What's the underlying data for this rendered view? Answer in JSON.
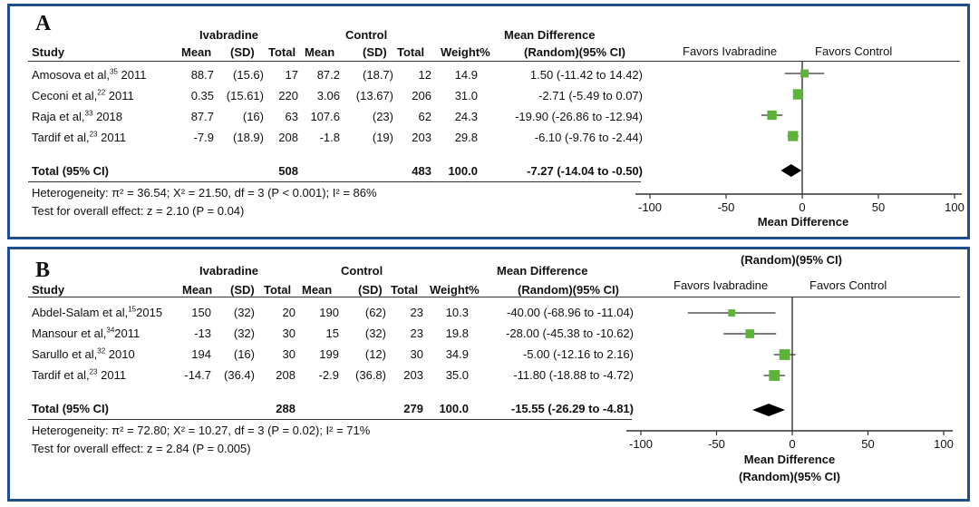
{
  "colors": {
    "frame": "#1f4e8c",
    "square": "#5cb33a",
    "diamond": "#000000",
    "line": "#333333"
  },
  "columns": {
    "study": "Study",
    "mean": "Mean",
    "sd": "(SD)",
    "total": "Total",
    "weight": "Weight%",
    "md_ci": "(Random)(95% CI)",
    "group1": "Ivabradine",
    "group2": "Control",
    "effect": "Mean Difference"
  },
  "panels": [
    {
      "letter": "A",
      "favors_left": "Favors  Ivabradine",
      "favors_right": "Favors Control",
      "axis_title": "Mean Difference",
      "axis_subtitle": "",
      "plot_top_label": "",
      "rows": [
        {
          "study": "Amosova et al,",
          "ref": "35",
          "year": "2011",
          "iv_mean": "88.7",
          "iv_sd": "(15.6)",
          "iv_total": "17",
          "c_mean": "87.2",
          "c_sd": "(18.7)",
          "c_total": "12",
          "weight": "14.9",
          "md_text": "1.50 (-11.42 to 14.42)"
        },
        {
          "study": "Ceconi et al,",
          "ref": "22",
          "year": "2011",
          "iv_mean": "0.35",
          "iv_sd": "(15.61)",
          "iv_total": "220",
          "c_mean": "3.06",
          "c_sd": "(13.67)",
          "c_total": "206",
          "weight": "31.0",
          "md_text": "-2.71 (-5.49 to 0.07)"
        },
        {
          "study": "Raja et al,",
          "ref": "33",
          "year": "2018",
          "iv_mean": "87.7",
          "iv_sd": "(16)",
          "iv_total": "63",
          "c_mean": "107.6",
          "c_sd": "(23)",
          "c_total": "62",
          "weight": "24.3",
          "md_text": "-19.90 (-26.86 to -12.94)"
        },
        {
          "study": "Tardif et al,",
          "ref": "23",
          "year": "2011",
          "iv_mean": "-7.9",
          "iv_sd": "(18.9)",
          "iv_total": "208",
          "c_mean": "-1.8",
          "c_sd": "(19)",
          "c_total": "203",
          "weight": "29.8",
          "md_text": "-6.10 (-9.76 to -2.44)"
        }
      ],
      "total": {
        "label": "Total (95% CI)",
        "iv_total": "508",
        "c_total": "483",
        "weight": "100.0",
        "md_text": "-7.27 (-14.04 to -0.50)"
      },
      "heterogeneity": "Heterogeneity:   π² = 36.54; X² = 21.50, df = 3 (P < 0.001); I² = 86%",
      "overall_effect": "Test for overall effect: z = 2.10 (P = 0.04)"
    },
    {
      "letter": "B",
      "favors_left": "Favors  Ivabradine",
      "favors_right": "Favors Control",
      "axis_title": "Mean Difference",
      "axis_subtitle": "(Random)(95% CI)",
      "plot_top_label": "(Random)(95% CI)",
      "rows": [
        {
          "study": "Abdel-Salam et al,",
          "ref": "15",
          "year": "2015",
          "iv_mean": "150",
          "iv_sd": "(32)",
          "iv_total": "20",
          "c_mean": "190",
          "c_sd": "(62)",
          "c_total": "23",
          "weight": "10.3",
          "md_text": "-40.00 (-68.96 to -11.04)"
        },
        {
          "study": "Mansour et al,",
          "ref": "34",
          "year": "2011",
          "iv_mean": "-13",
          "iv_sd": "(32)",
          "iv_total": "30",
          "c_mean": "15",
          "c_sd": "(32)",
          "c_total": "23",
          "weight": "19.8",
          "md_text": "-28.00 (-45.38 to -10.62)"
        },
        {
          "study": "Sarullo et al,",
          "ref": "32",
          "year": "2010",
          "iv_mean": "194",
          "iv_sd": "(16)",
          "iv_total": "30",
          "c_mean": "199",
          "c_sd": "(12)",
          "c_total": "30",
          "weight": "34.9",
          "md_text": "-5.00 (-12.16 to 2.16)"
        },
        {
          "study": "Tardif et al,",
          "ref": "23",
          "year": "2011",
          "iv_mean": "-14.7",
          "iv_sd": "(36.4)",
          "iv_total": "208",
          "c_mean": "-2.9",
          "c_sd": "(36.8)",
          "c_total": "203",
          "weight": "35.0",
          "md_text": "-11.80 (-18.88 to -4.72)"
        }
      ],
      "total": {
        "label": "Total (95% CI)",
        "iv_total": "288",
        "c_total": "279",
        "weight": "100.0",
        "md_text": "-15.55 (-26.29 to -4.81)"
      },
      "heterogeneity": "Heterogeneity:    π² = 72.80; X² = 10.27, df = 3 (P = 0.02); I² = 71%",
      "overall_effect": "Test for overall effect: z = 2.84 (P = 0.005)"
    }
  ],
  "chart_data": [
    {
      "type": "forest",
      "title": "A",
      "xlabel": "Mean Difference",
      "xlim": [
        -100,
        100
      ],
      "ticks": [
        -100,
        -50,
        0,
        50,
        100
      ],
      "tick_labels": [
        "-100",
        "-50",
        "0",
        "50",
        "100"
      ],
      "studies": [
        {
          "name": "Amosova et al 2011",
          "md": 1.5,
          "lo": -11.42,
          "hi": 14.42,
          "weight": 14.9
        },
        {
          "name": "Ceconi et al 2011",
          "md": -2.71,
          "lo": -5.49,
          "hi": 0.07,
          "weight": 31.0
        },
        {
          "name": "Raja et al 2018",
          "md": -19.9,
          "lo": -26.86,
          "hi": -12.94,
          "weight": 24.3
        },
        {
          "name": "Tardif et al 2011",
          "md": -6.1,
          "lo": -9.76,
          "hi": -2.44,
          "weight": 29.8
        }
      ],
      "pooled": {
        "md": -7.27,
        "lo": -14.04,
        "hi": -0.5
      }
    },
    {
      "type": "forest",
      "title": "B",
      "xlabel": "Mean Difference (Random)(95% CI)",
      "xlim": [
        -100,
        100
      ],
      "ticks": [
        -100,
        -50,
        0,
        50,
        100
      ],
      "tick_labels": [
        "-100",
        "-50",
        "0",
        "50",
        "100"
      ],
      "studies": [
        {
          "name": "Abdel-Salam et al 2015",
          "md": -40.0,
          "lo": -68.96,
          "hi": -11.04,
          "weight": 10.3
        },
        {
          "name": "Mansour et al 2011",
          "md": -28.0,
          "lo": -45.38,
          "hi": -10.62,
          "weight": 19.8
        },
        {
          "name": "Sarullo et al 2010",
          "md": -5.0,
          "lo": -12.16,
          "hi": 2.16,
          "weight": 34.9
        },
        {
          "name": "Tardif et al 2011",
          "md": -11.8,
          "lo": -18.88,
          "hi": -4.72,
          "weight": 35.0
        }
      ],
      "pooled": {
        "md": -15.55,
        "lo": -26.29,
        "hi": -4.81
      }
    }
  ]
}
